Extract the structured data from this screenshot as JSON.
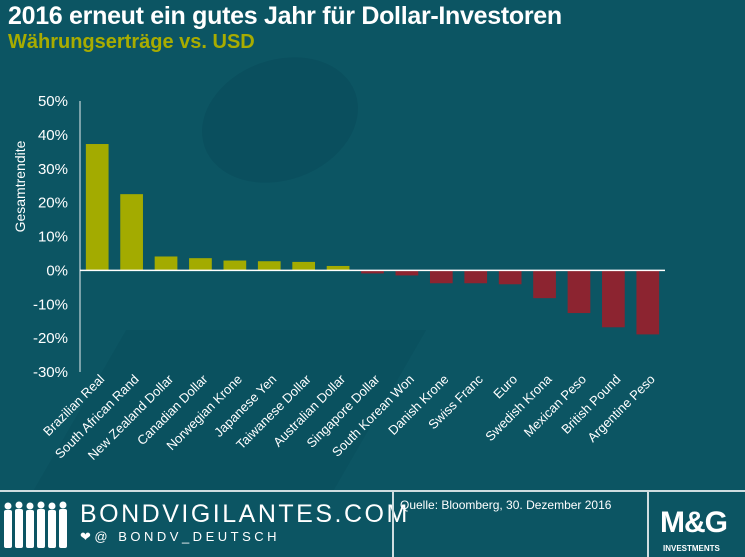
{
  "header": {
    "title": "2016 erneut ein gutes Jahr für Dollar-Investoren",
    "subtitle": "Währungserträge vs. USD"
  },
  "chart_data": {
    "type": "bar",
    "title": "2016 erneut ein gutes Jahr für Dollar-Investoren",
    "subtitle": "Währungserträge vs. USD",
    "xlabel": "",
    "ylabel": "Gesamtrendite",
    "ylim": [
      -30,
      50
    ],
    "yticks": [
      50,
      40,
      30,
      20,
      10,
      0,
      -10,
      -20,
      -30
    ],
    "ytick_labels": [
      "50%",
      "40%",
      "30%",
      "20%",
      "10%",
      "0%",
      "-10%",
      "-20%",
      "-30%"
    ],
    "grid": false,
    "categories": [
      "Brazilian Real",
      "South African Rand",
      "New Zealand Dollar",
      "Canadian Dollar",
      "Norwegian Krone",
      "Japanese Yen",
      "Taiwanese Dollar",
      "Australian Dollar",
      "Singapore Dollar",
      "South Korean Won",
      "Danish Krone",
      "Swiss Franc",
      "Euro",
      "Swedish Krona",
      "Mexican Peso",
      "British Pound",
      "Argentine Peso"
    ],
    "values": [
      37.3,
      22.5,
      4.1,
      3.6,
      2.9,
      2.7,
      2.5,
      1.3,
      -0.9,
      -1.5,
      -3.8,
      -3.8,
      -4.1,
      -8.2,
      -12.6,
      -16.8,
      -18.9
    ],
    "colors": {
      "positive": "#a3ab00",
      "negative": "#8c2430",
      "axis": "#ffffff"
    }
  },
  "footer": {
    "brand": "BONDVIGILANTES.COM",
    "twitter": "@ BONDV_DEUTSCH",
    "source": "Quelle: Bloomberg, 30. Dezember 2016",
    "logo_text": "M&G",
    "logo_sub": "INVESTMENTS"
  }
}
